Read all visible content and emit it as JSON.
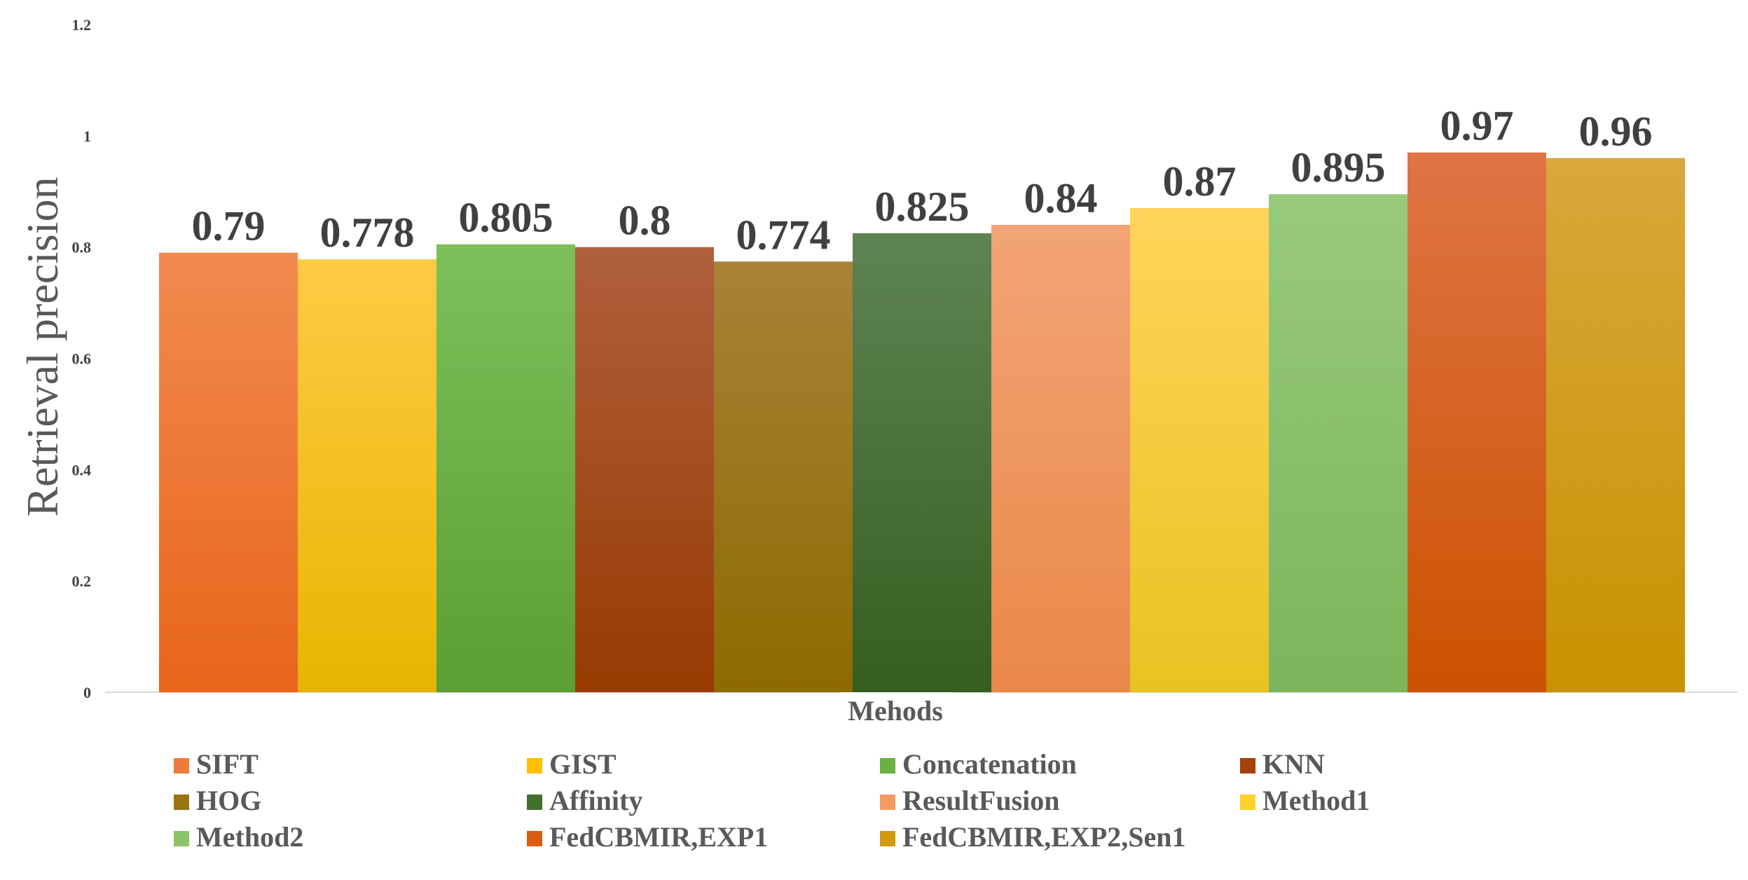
{
  "chart_data": {
    "type": "bar",
    "title": "",
    "xlabel": "Mehods",
    "ylabel": "Retrieval precision",
    "ylim": [
      0,
      1.2
    ],
    "yticks": [
      0,
      0.2,
      0.4,
      0.6,
      0.8,
      1,
      1.2
    ],
    "ytick_labels": [
      "0",
      "0.2",
      "0.4",
      "0.6",
      "0.8",
      "1",
      "1.2"
    ],
    "grid": false,
    "legend_position": "bottom",
    "series": [
      {
        "name": "SIFT",
        "value": 0.79,
        "label": "0.79",
        "color_top": "#f28a4f",
        "color_bottom": "#e8651a",
        "legend_color": "#f07a3c"
      },
      {
        "name": "GIST",
        "value": 0.778,
        "label": "0.778",
        "color_top": "#ffcb45",
        "color_bottom": "#e8b400",
        "legend_color": "#ffc000"
      },
      {
        "name": "Concatenation",
        "value": 0.805,
        "label": "0.805",
        "color_top": "#7dc05a",
        "color_bottom": "#5a9f33",
        "legend_color": "#6bb043"
      },
      {
        "name": "KNN",
        "value": 0.8,
        "label": "0.8",
        "color_top": "#b0603d",
        "color_bottom": "#983a02",
        "legend_color": "#a5410f"
      },
      {
        "name": "HOG",
        "value": 0.774,
        "label": "0.774",
        "color_top": "#a88238",
        "color_bottom": "#8f6a00",
        "legend_color": "#9a7410"
      },
      {
        "name": "Affinity",
        "value": 0.825,
        "label": "0.825",
        "color_top": "#5f8454",
        "color_bottom": "#355e20",
        "legend_color": "#43702e"
      },
      {
        "name": "ResultFusion",
        "value": 0.84,
        "label": "0.84",
        "color_top": "#f2a476",
        "color_bottom": "#ea8848",
        "legend_color": "#f49b62"
      },
      {
        "name": "Method1",
        "value": 0.87,
        "label": "0.87",
        "color_top": "#ffd45a",
        "color_bottom": "#e8c322",
        "legend_color": "#ffd12b"
      },
      {
        "name": "Method2",
        "value": 0.895,
        "label": "0.895",
        "color_top": "#98ca7c",
        "color_bottom": "#7cb55b",
        "legend_color": "#8cc46b"
      },
      {
        "name": "FedCBMIR,EXP1",
        "value": 0.97,
        "label": "0.97",
        "color_top": "#e07445",
        "color_bottom": "#cc5200",
        "legend_color": "#d95e10"
      },
      {
        "name": "FedCBMIR,EXP2,Sen1",
        "value": 0.96,
        "label": "0.96",
        "color_top": "#d8a83c",
        "color_bottom": "#c99200",
        "legend_color": "#d19a10"
      }
    ]
  }
}
